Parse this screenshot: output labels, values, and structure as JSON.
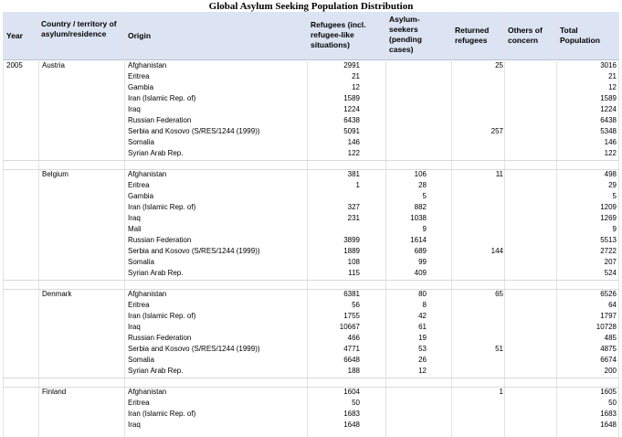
{
  "title": "Global Asylum Seeking Population Distribution",
  "headers": {
    "year": "Year",
    "country": "Country / territory of asylum/residence",
    "origin": "Origin",
    "refugees": "Refugees (incl. refugee-like situations)",
    "asylum": "Asylum-seekers (pending cases)",
    "returned": "Returned refugees",
    "others": "Others of concern",
    "total": "Total Population"
  },
  "year": "2005",
  "groups": [
    {
      "country": "Austria",
      "rows": [
        {
          "origin": "Afghanistan",
          "refugees": "2991",
          "asylum": "",
          "returned": "25",
          "total": "3016"
        },
        {
          "origin": "Eritrea",
          "refugees": "21",
          "asylum": "",
          "returned": "",
          "total": "21"
        },
        {
          "origin": "Gambia",
          "refugees": "12",
          "asylum": "",
          "returned": "",
          "total": "12"
        },
        {
          "origin": "Iran (Islamic Rep. of)",
          "refugees": "1589",
          "asylum": "",
          "returned": "",
          "total": "1589"
        },
        {
          "origin": "Iraq",
          "refugees": "1224",
          "asylum": "",
          "returned": "",
          "total": "1224"
        },
        {
          "origin": "Russian Federation",
          "refugees": "6438",
          "asylum": "",
          "returned": "",
          "total": "6438"
        },
        {
          "origin": "Serbia and Kosovo (S/RES/1244 (1999))",
          "refugees": "5091",
          "asylum": "",
          "returned": "257",
          "total": "5348"
        },
        {
          "origin": "Somalia",
          "refugees": "146",
          "asylum": "",
          "returned": "",
          "total": "146"
        },
        {
          "origin": "Syrian Arab Rep.",
          "refugees": "122",
          "asylum": "",
          "returned": "",
          "total": "122"
        }
      ]
    },
    {
      "country": "Belgium",
      "rows": [
        {
          "origin": "Afghanistan",
          "refugees": "381",
          "asylum": "106",
          "returned": "11",
          "total": "498"
        },
        {
          "origin": "Eritrea",
          "refugees": "1",
          "asylum": "28",
          "returned": "",
          "total": "29"
        },
        {
          "origin": "Gambia",
          "refugees": "",
          "asylum": "5",
          "returned": "",
          "total": "5"
        },
        {
          "origin": "Iran (Islamic Rep. of)",
          "refugees": "327",
          "asylum": "882",
          "returned": "",
          "total": "1209"
        },
        {
          "origin": "Iraq",
          "refugees": "231",
          "asylum": "1038",
          "returned": "",
          "total": "1269"
        },
        {
          "origin": "Mali",
          "refugees": "",
          "asylum": "9",
          "returned": "",
          "total": "9"
        },
        {
          "origin": "Russian Federation",
          "refugees": "3899",
          "asylum": "1614",
          "returned": "",
          "total": "5513"
        },
        {
          "origin": "Serbia and Kosovo (S/RES/1244 (1999))",
          "refugees": "1889",
          "asylum": "689",
          "returned": "144",
          "total": "2722"
        },
        {
          "origin": "Somalia",
          "refugees": "108",
          "asylum": "99",
          "returned": "",
          "total": "207"
        },
        {
          "origin": "Syrian Arab Rep.",
          "refugees": "115",
          "asylum": "409",
          "returned": "",
          "total": "524"
        }
      ]
    },
    {
      "country": "Denmark",
      "rows": [
        {
          "origin": "Afghanistan",
          "refugees": "6381",
          "asylum": "80",
          "returned": "65",
          "total": "6526"
        },
        {
          "origin": "Eritrea",
          "refugees": "56",
          "asylum": "8",
          "returned": "",
          "total": "64"
        },
        {
          "origin": "Iran (Islamic Rep. of)",
          "refugees": "1755",
          "asylum": "42",
          "returned": "",
          "total": "1797"
        },
        {
          "origin": "Iraq",
          "refugees": "10667",
          "asylum": "61",
          "returned": "",
          "total": "10728"
        },
        {
          "origin": "Russian Federation",
          "refugees": "466",
          "asylum": "19",
          "returned": "",
          "total": "485"
        },
        {
          "origin": "Serbia and Kosovo (S/RES/1244 (1999))",
          "refugees": "4771",
          "asylum": "53",
          "returned": "51",
          "total": "4875"
        },
        {
          "origin": "Somalia",
          "refugees": "6648",
          "asylum": "26",
          "returned": "",
          "total": "6674"
        },
        {
          "origin": "Syrian Arab Rep.",
          "refugees": "188",
          "asylum": "12",
          "returned": "",
          "total": "200"
        }
      ]
    },
    {
      "country": "Finland",
      "rows": [
        {
          "origin": "Afghanistan",
          "refugees": "1604",
          "asylum": "",
          "returned": "1",
          "total": "1605"
        },
        {
          "origin": "Eritrea",
          "refugees": "50",
          "asylum": "",
          "returned": "",
          "total": "50"
        },
        {
          "origin": "Iran (Islamic Rep. of)",
          "refugees": "1683",
          "asylum": "",
          "returned": "",
          "total": "1683"
        },
        {
          "origin": "Iraq",
          "refugees": "1648",
          "asylum": "",
          "returned": "",
          "total": "1648"
        }
      ]
    }
  ]
}
